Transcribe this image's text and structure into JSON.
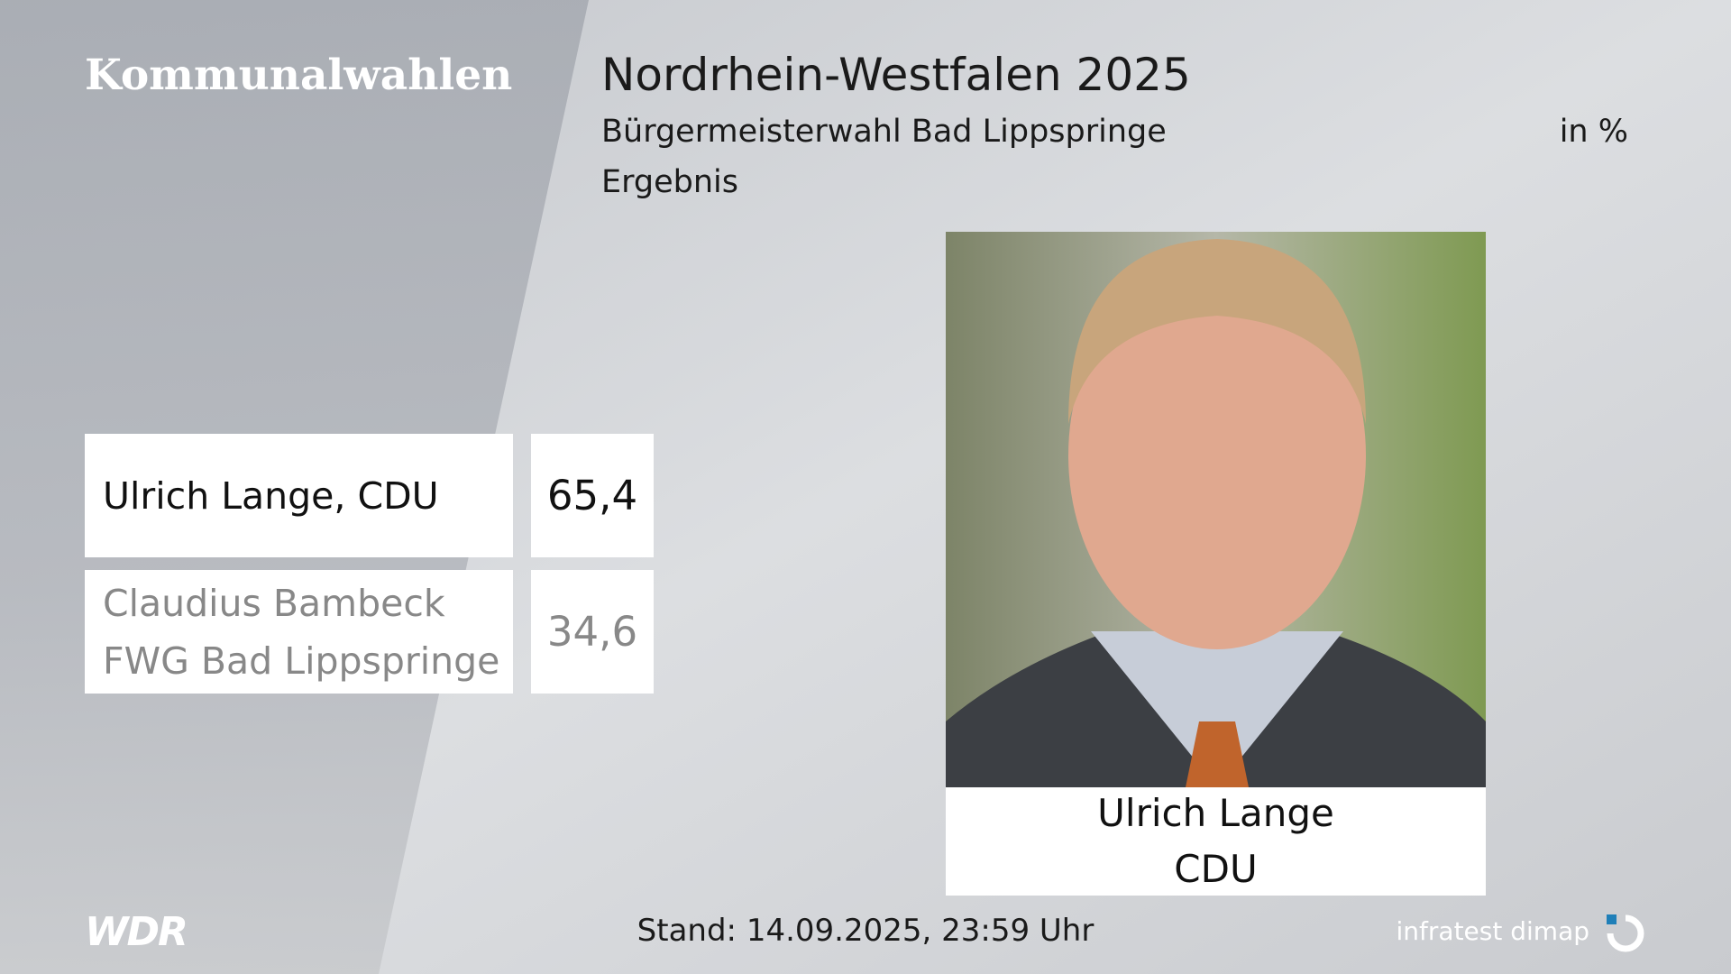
{
  "header": {
    "brand": "Kommunalwahlen",
    "title": "Nordrhein-Westfalen 2025",
    "subtitle": "Bürgermeisterwahl Bad Lippspringe",
    "unit": "in %",
    "caption": "Ergebnis"
  },
  "table": {
    "rows": [
      [
        [
          "Ulrich Lange, CDU"
        ],
        "65,4"
      ],
      [
        [
          "Claudius Bambeck",
          "FWG Bad Lippspringe"
        ],
        "34,6"
      ]
    ]
  },
  "photo": {
    "name": "Ulrich Lange",
    "party": "CDU"
  },
  "footer": {
    "logo": "WDR",
    "stand": "Stand: 14.09.2025, 23:59 Uhr",
    "source": "infratest dimap"
  }
}
